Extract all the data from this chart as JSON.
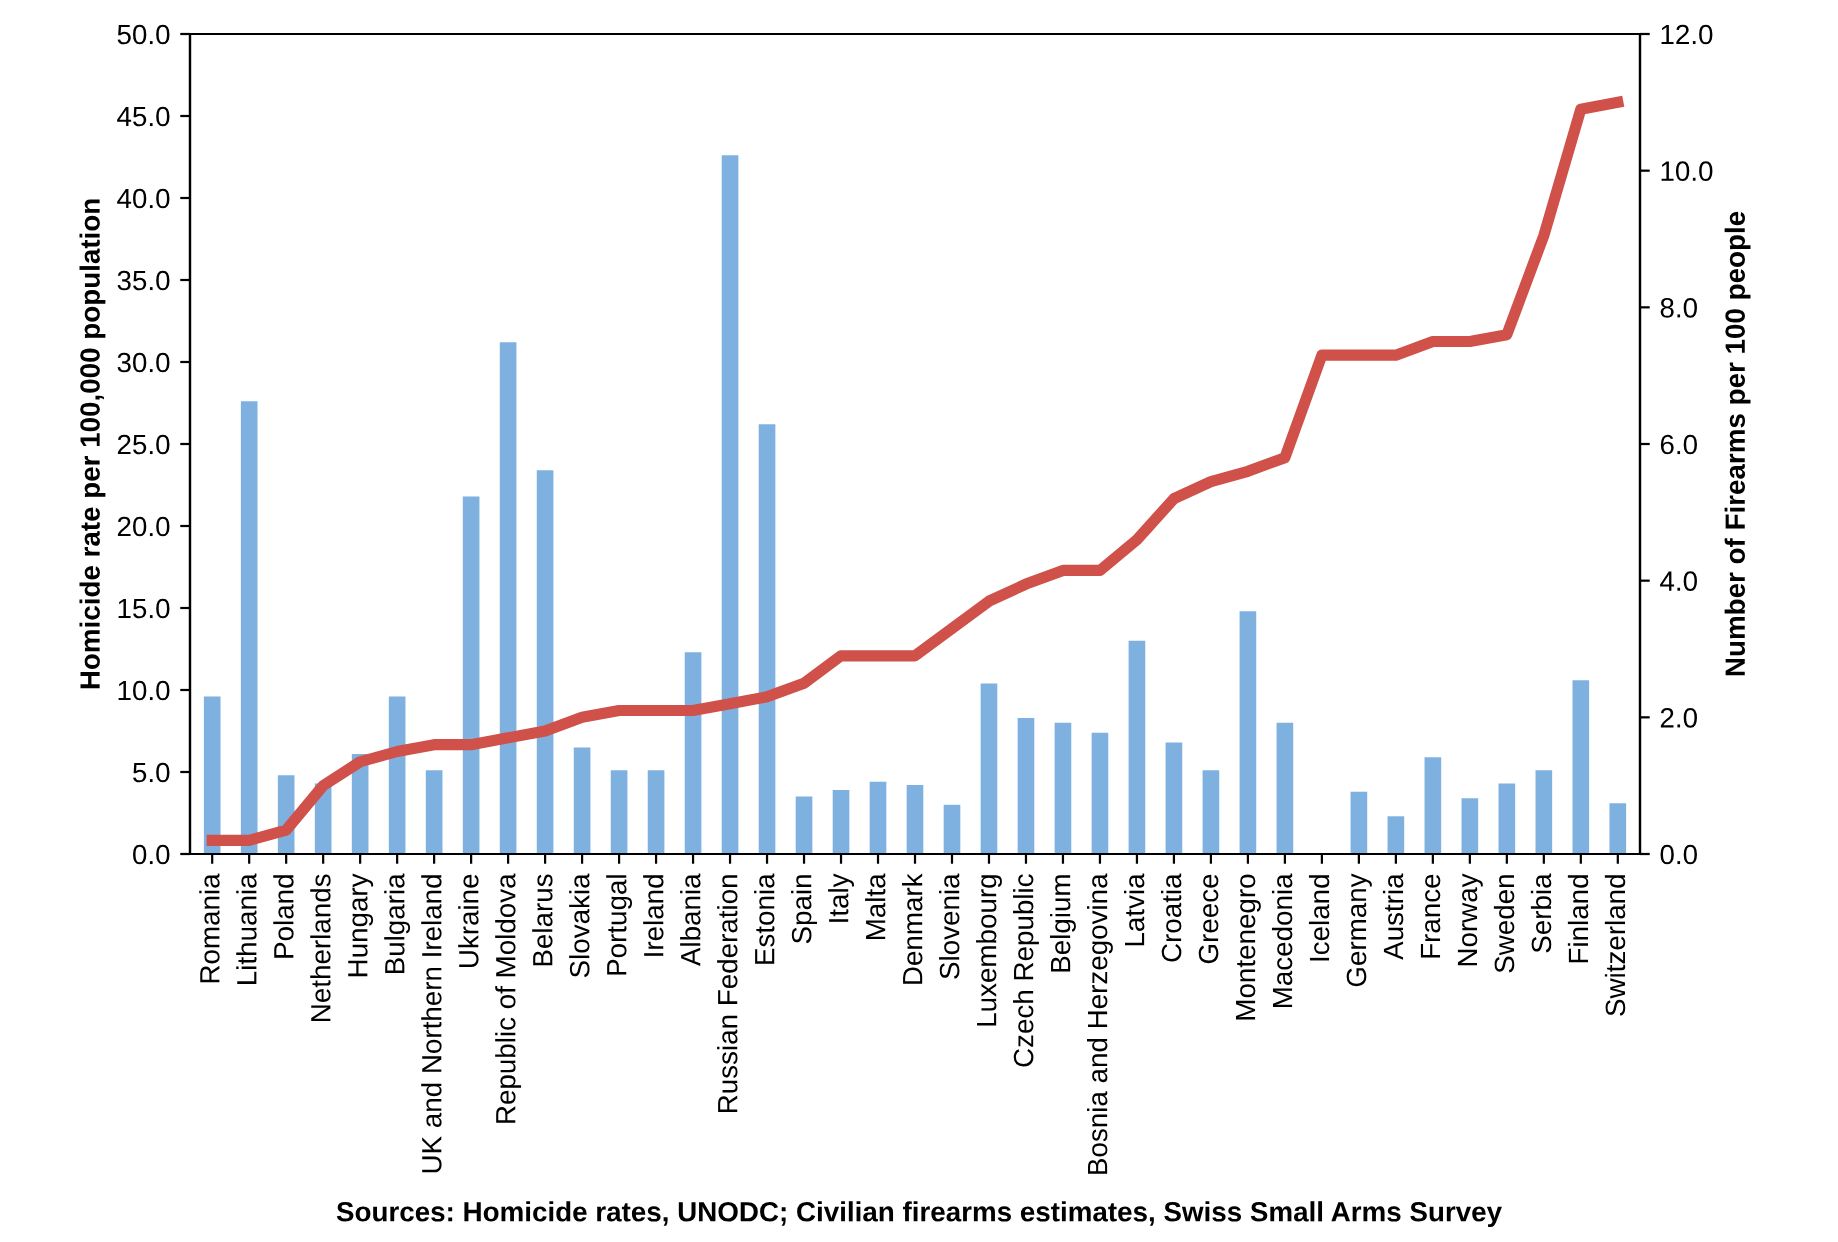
{
  "chart_data": {
    "type": "bar",
    "categories": [
      "Romania",
      "Lithuania",
      "Poland",
      "Netherlands",
      "Hungary",
      "Bulgaria",
      "UK and Northern Ireland",
      "Ukraine",
      "Republic of Moldova",
      "Belarus",
      "Slovakia",
      "Portugal",
      "Ireland",
      "Albania",
      "Russian Federation",
      "Estonia",
      "Spain",
      "Italy",
      "Malta",
      "Denmark",
      "Slovenia",
      "Luxembourg",
      "Czech Republic",
      "Belgium",
      "Bosnia and Herzegovina",
      "Latvia",
      "Croatia",
      "Greece",
      "Montenegro",
      "Macedonia",
      "Iceland",
      "Germany",
      "Austria",
      "France",
      "Norway",
      "Sweden",
      "Serbia",
      "Finland",
      "Switzerland"
    ],
    "series": [
      {
        "color": "#7eb0e0",
        "values": [
          9.6,
          27.6,
          4.8,
          4.3,
          6.1,
          9.6,
          5.1,
          21.8,
          31.2,
          23.4,
          6.5,
          5.1,
          5.1,
          12.3,
          42.6,
          26.2,
          3.5,
          3.9,
          4.4,
          4.2,
          3.0,
          10.4,
          8.3,
          8.0,
          7.4,
          13.0,
          6.8,
          5.1,
          14.8,
          8.0,
          0,
          3.8,
          2.3,
          5.9,
          3.4,
          4.3,
          5.1,
          10.6,
          3.1
        ]
      },
      {
        "type": "line",
        "axis": "y2",
        "color": "#d0504a",
        "values": [
          0.2,
          0.2,
          0.35,
          1.0,
          1.35,
          1.5,
          1.6,
          1.6,
          1.7,
          1.8,
          2.0,
          2.1,
          2.1,
          2.1,
          2.2,
          2.3,
          2.5,
          2.9,
          2.9,
          2.9,
          3.3,
          3.7,
          3.95,
          4.15,
          4.15,
          4.6,
          5.2,
          5.45,
          5.6,
          5.8,
          7.3,
          7.3,
          7.3,
          7.5,
          7.5,
          7.6,
          9.05,
          10.9,
          11.0
        ]
      }
    ],
    "ylabel": "Homicide rate per 100,000 population",
    "y2label": "Number of Firearms per 100 people",
    "ylim": [
      0,
      50
    ],
    "yticks": [
      {
        "value": 0,
        "label": "0.0"
      },
      {
        "value": 5,
        "label": "5.0"
      },
      {
        "value": 10,
        "label": "10.0"
      },
      {
        "value": 15,
        "label": "15.0"
      },
      {
        "value": 20,
        "label": "20.0"
      },
      {
        "value": 25,
        "label": "25.0"
      },
      {
        "value": 30,
        "label": "30.0"
      },
      {
        "value": 35,
        "label": "35.0"
      },
      {
        "value": 40,
        "label": "40.0"
      },
      {
        "value": 45,
        "label": "45.0"
      },
      {
        "value": 50,
        "label": "50.0"
      }
    ],
    "y2lim": [
      0,
      12
    ],
    "y2ticks": [
      {
        "value": 0,
        "label": "0.0"
      },
      {
        "value": 2,
        "label": "2.0"
      },
      {
        "value": 4,
        "label": "4.0"
      },
      {
        "value": 6,
        "label": "6.0"
      },
      {
        "value": 8,
        "label": "8.0"
      },
      {
        "value": 10,
        "label": "10.0"
      },
      {
        "value": 12,
        "label": "12.0"
      }
    ],
    "annotations": [
      "Sources: Homicide rates, UNODC; Civilian firearms estimates, Swiss Small Arms Survey"
    ],
    "grid": false,
    "legend": false,
    "marker": "none",
    "line_style": "solid"
  }
}
